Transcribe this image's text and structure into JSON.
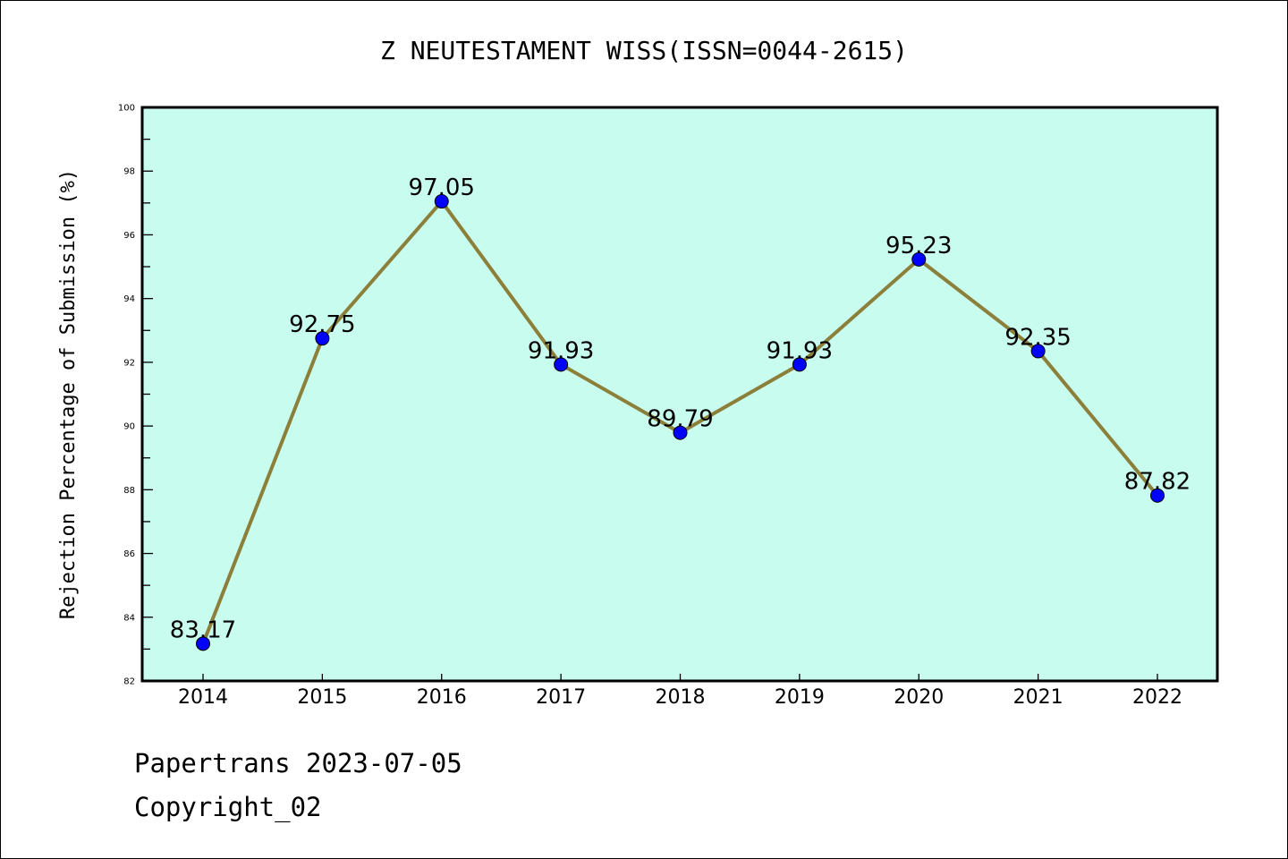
{
  "chart_data": {
    "type": "line",
    "title": "Z NEUTESTAMENT WISS(ISSN=0044-2615)",
    "xlabel": "",
    "ylabel": "Rejection Percentage of Submission (%)",
    "categories": [
      "2014",
      "2015",
      "2016",
      "2017",
      "2018",
      "2019",
      "2020",
      "2021",
      "2022"
    ],
    "values": [
      83.17,
      92.75,
      97.05,
      91.93,
      89.79,
      91.93,
      95.23,
      92.35,
      87.82
    ],
    "data_labels": [
      "83.17",
      "92.75",
      "97.05",
      "91.93",
      "89.79",
      "91.93",
      "95.23",
      "92.35",
      "87.82"
    ],
    "ylim": [
      82,
      100
    ],
    "yticks": [
      "82",
      "84",
      "86",
      "88",
      "90",
      "92",
      "94",
      "96",
      "98",
      "100"
    ],
    "grid": false,
    "colors": {
      "plot_bg": "#c8fcee",
      "line": "#8b7f3a",
      "marker": "#0000ff"
    }
  },
  "footer": {
    "line1": "Papertrans 2023-07-05",
    "line2": "Copyright_02"
  }
}
